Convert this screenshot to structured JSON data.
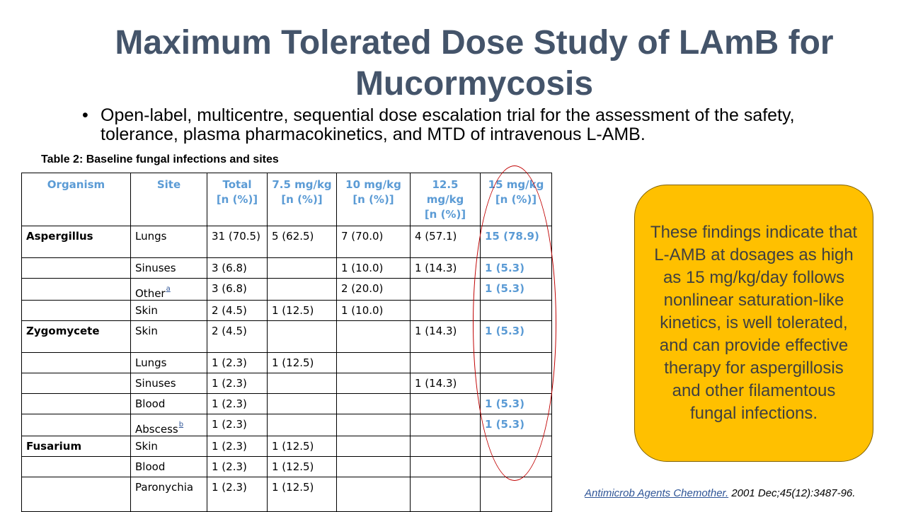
{
  "title": "Maximum Tolerated Dose Study of LAmB for Mucormycosis",
  "bullet": {
    "marker": "•",
    "text": "Open-label, multicentre, sequential dose escalation trial for the assessment of the safety, tolerance, plasma pharmacokinetics, and MTD of intravenous L-AMB."
  },
  "table": {
    "caption": "Table 2: Baseline fungal infections and sites",
    "headers": {
      "organism": "Organism",
      "site": "Site",
      "total_1": "Total",
      "total_2": "[n (%)]",
      "d75_1": "7.5 mg/kg",
      "d75_2": "[n (%)]",
      "d10_1": "10 mg/kg",
      "d10_2": "[n (%)]",
      "d125_1": "12.5",
      "d125_2": "mg/kg",
      "d125_3": "[n (%)]",
      "d15_1": "15 mg/kg",
      "d15_2": "[n (%)]"
    },
    "rows": [
      {
        "organism": "Aspergillus",
        "site": "Lungs",
        "total": "31 (70.5)",
        "d75": "5 (62.5)",
        "d10": "7 (70.0)",
        "d125": "4 (57.1)",
        "d15": "15 (78.9)"
      },
      {
        "organism": "",
        "site": "Sinuses",
        "total": "3 (6.8)",
        "d75": "",
        "d10": "1 (10.0)",
        "d125": "1 (14.3)",
        "d15": "1 (5.3)"
      },
      {
        "organism": "",
        "site": "Other",
        "site_sup": "a",
        "total": "3 (6.8)",
        "d75": "",
        "d10": "2 (20.0)",
        "d125": "",
        "d15": "1 (5.3)"
      },
      {
        "organism": "",
        "site": "Skin",
        "total": "2 (4.5)",
        "d75": "1 (12.5)",
        "d10": "1 (10.0)",
        "d125": "",
        "d15": ""
      },
      {
        "organism": "Zygomycete",
        "site": "Skin",
        "total": "2 (4.5)",
        "d75": "",
        "d10": "",
        "d125": "1 (14.3)",
        "d15": "1 (5.3)"
      },
      {
        "organism": "",
        "site": "Lungs",
        "total": "1 (2.3)",
        "d75": "1 (12.5)",
        "d10": "",
        "d125": "",
        "d15": ""
      },
      {
        "organism": "",
        "site": "Sinuses",
        "total": "1 (2.3)",
        "d75": "",
        "d10": "",
        "d125": "1 (14.3)",
        "d15": ""
      },
      {
        "organism": "",
        "site": "Blood",
        "total": "1 (2.3)",
        "d75": "",
        "d10": "",
        "d125": "",
        "d15": "1 (5.3)"
      },
      {
        "organism": "",
        "site": "Abscess",
        "site_sup": "b",
        "total": "1 (2.3)",
        "d75": "",
        "d10": "",
        "d125": "",
        "d15": "1 (5.3)"
      },
      {
        "organism": "Fusarium",
        "site": "Skin",
        "total": "1 (2.3)",
        "d75": "1 (12.5)",
        "d10": "",
        "d125": "",
        "d15": ""
      },
      {
        "organism": "",
        "site": "Blood",
        "total": "1 (2.3)",
        "d75": "1 (12.5)",
        "d10": "",
        "d125": "",
        "d15": ""
      },
      {
        "organism": "",
        "site": "Paronychia",
        "total": "1 (2.3)",
        "d75": "1 (12.5)",
        "d10": "",
        "d125": "",
        "d15": ""
      }
    ]
  },
  "callout": "These findings indicate that L-AMB at dosages as high as 15 mg/kg/day follows nonlinear saturation-like kinetics, is well tolerated, and can provide effective therapy for aspergillosis and other filamentous fungal infections.",
  "citation": {
    "journal": "Antimicrob Agents Chemother.",
    "details": " 2001 Dec;45(12):3487-96."
  },
  "colors": {
    "title": "#44546a",
    "table_header": "#5b9bd5",
    "callout_fill": "#ffc000",
    "highlight_circle": "#c00000",
    "link": "#2f5597"
  }
}
